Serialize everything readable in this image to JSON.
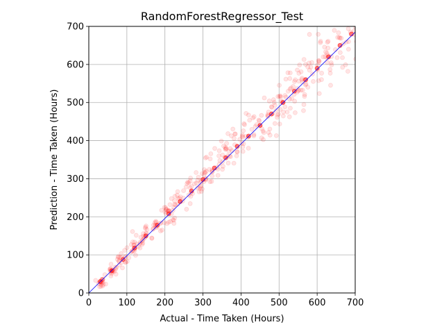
{
  "chart_data": {
    "type": "scatter",
    "title": "RandomForestRegressor_Test",
    "xlabel": "Actual - Time Taken (Hours)",
    "ylabel": "Prediction - Time Taken (Hours)",
    "xlim": [
      0,
      700
    ],
    "ylim": [
      0,
      700
    ],
    "xticks": [
      "0",
      "100",
      "200",
      "300",
      "400",
      "500",
      "600",
      "700"
    ],
    "yticks": [
      "0",
      "100",
      "200",
      "300",
      "400",
      "500",
      "600",
      "700"
    ],
    "grid": true,
    "reference_line": {
      "x": [
        0,
        700
      ],
      "y": [
        0,
        685
      ]
    },
    "series": [
      {
        "marker": "circle",
        "alpha": 0.1,
        "clusters": [
          {
            "x": 30,
            "y": 30
          },
          {
            "x": 60,
            "y": 58
          },
          {
            "x": 90,
            "y": 88
          },
          {
            "x": 120,
            "y": 118
          },
          {
            "x": 150,
            "y": 150
          },
          {
            "x": 180,
            "y": 178
          },
          {
            "x": 210,
            "y": 208
          },
          {
            "x": 240,
            "y": 240
          },
          {
            "x": 270,
            "y": 268
          },
          {
            "x": 300,
            "y": 298
          },
          {
            "x": 330,
            "y": 328
          },
          {
            "x": 360,
            "y": 355
          },
          {
            "x": 390,
            "y": 385
          },
          {
            "x": 420,
            "y": 412
          },
          {
            "x": 450,
            "y": 440
          },
          {
            "x": 480,
            "y": 470
          },
          {
            "x": 510,
            "y": 500
          },
          {
            "x": 540,
            "y": 530
          },
          {
            "x": 570,
            "y": 560
          },
          {
            "x": 600,
            "y": 590
          },
          {
            "x": 630,
            "y": 620
          },
          {
            "x": 660,
            "y": 650
          },
          {
            "x": 690,
            "y": 680
          }
        ]
      }
    ],
    "colors": {
      "points": "#ff0000",
      "reference_line": "#0000ff",
      "grid": "#b0b0b0"
    }
  }
}
